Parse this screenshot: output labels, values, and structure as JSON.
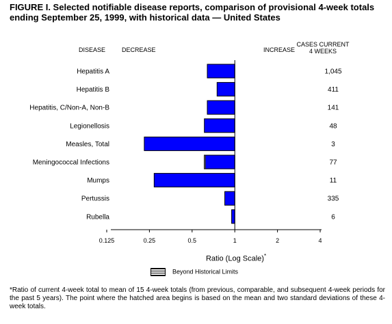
{
  "title": "FIGURE I. Selected notifiable disease reports, comparison of provisional 4-week totals ending September 25, 1999, with historical data — United States",
  "headers": {
    "disease": "DISEASE",
    "decrease": "DECREASE",
    "increase": "INCREASE",
    "cases_line1": "CASES CURRENT",
    "cases_line2": "4 WEEKS"
  },
  "xlabel": "Ratio (Log Scale)",
  "xlabel_marker": "*",
  "legend_label": "Beyond Historical Limits",
  "footnote": "*Ratio of current 4-week total to mean of 15 4-week totals (from previous, comparable, and subsequent 4-week periods for the past 5 years). The point where the hatched area begins is based on the mean and two standard deviations of these 4-week totals.",
  "chart_data": {
    "type": "bar",
    "orientation": "horizontal",
    "scale": "log2",
    "xlim": [
      0.125,
      4
    ],
    "x_ticks": [
      "0.125",
      "0.25",
      "0.5",
      "1",
      "2",
      "4"
    ],
    "x_tick_values": [
      0.125,
      0.25,
      0.5,
      1,
      2,
      4
    ],
    "bar_color": "#0000ff",
    "categories": [
      "Hepatitis A",
      "Hepatitis B",
      "Hepatitis, C/Non-A, Non-B",
      "Legionellosis",
      "Measles, Total",
      "Meningococcal Infections",
      "Mumps",
      "Pertussis",
      "Rubella"
    ],
    "ratios": [
      0.64,
      0.75,
      0.64,
      0.61,
      0.23,
      0.61,
      0.27,
      0.85,
      0.95
    ],
    "beyond_historical_limits": [
      false,
      false,
      false,
      false,
      false,
      true,
      false,
      false,
      false
    ],
    "hatch_ratio": [
      null,
      null,
      null,
      null,
      null,
      0.62,
      null,
      null,
      null
    ],
    "cases_current_4_weeks": [
      "1,045",
      "411",
      "141",
      "48",
      "3",
      "77",
      "11",
      "335",
      "6"
    ]
  }
}
